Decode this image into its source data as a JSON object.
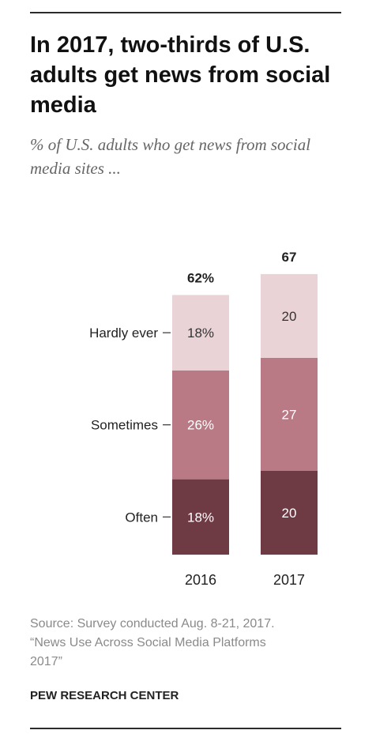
{
  "header": {
    "title": "In 2017, two-thirds of U.S. adults get news from social media",
    "subtitle": "% of U.S. adults who get news from social media sites ..."
  },
  "chart_data": {
    "type": "bar",
    "stacked": true,
    "categories": [
      "2016",
      "2017"
    ],
    "series": [
      {
        "name": "Often",
        "values": [
          18,
          20
        ],
        "labels": [
          "18%",
          "20"
        ],
        "color": "#6e3b45"
      },
      {
        "name": "Sometimes",
        "values": [
          26,
          27
        ],
        "labels": [
          "26%",
          "27"
        ],
        "color": "#b97a85"
      },
      {
        "name": "Hardly ever",
        "values": [
          18,
          20
        ],
        "labels": [
          "18%",
          "20"
        ],
        "color": "#e9d3d6"
      }
    ],
    "totals": {
      "values": [
        62,
        67
      ],
      "labels": [
        "62%",
        "67"
      ]
    },
    "ylim": [
      0,
      70
    ]
  },
  "footer": {
    "source_lines": [
      "Source: Survey conducted Aug. 8-21, 2017.",
      "“News Use Across Social Media Platforms",
      "2017”"
    ],
    "org": "PEW RESEARCH CENTER"
  }
}
